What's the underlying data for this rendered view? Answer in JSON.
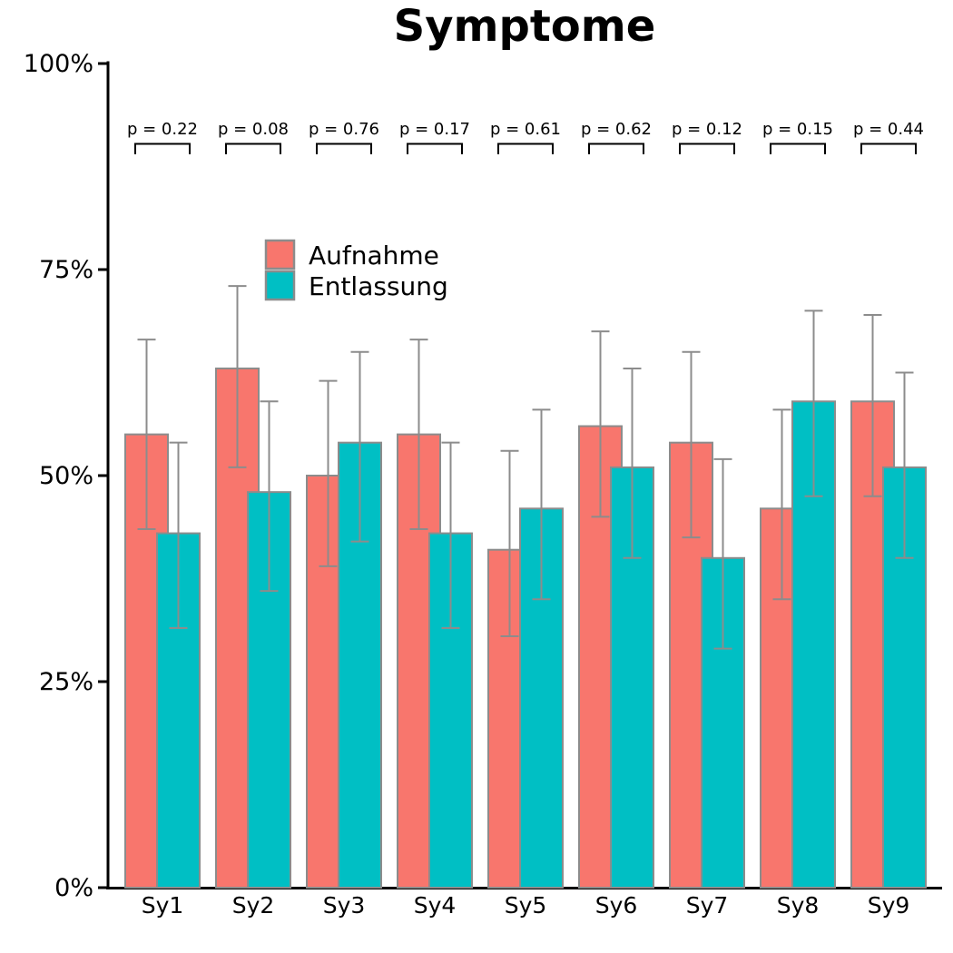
{
  "chart_data": {
    "type": "bar",
    "title": "Symptome",
    "categories": [
      "Sy1",
      "Sy2",
      "Sy3",
      "Sy4",
      "Sy5",
      "Sy6",
      "Sy7",
      "Sy8",
      "Sy9"
    ],
    "series": [
      {
        "name": "Aufnahme",
        "color": "#F8766D",
        "values": [
          55,
          63,
          50,
          55,
          41,
          56,
          54,
          46,
          59
        ],
        "error_low": [
          43.5,
          51,
          39,
          43.5,
          30.5,
          45,
          42.5,
          35,
          47.5
        ],
        "error_high": [
          66.5,
          73,
          61.5,
          66.5,
          53,
          67.5,
          65,
          58,
          69.5
        ]
      },
      {
        "name": "Entlassung",
        "color": "#00BFC4",
        "values": [
          43,
          48,
          54,
          43,
          46,
          51,
          40,
          59,
          51
        ],
        "error_low": [
          31.5,
          36,
          42,
          31.5,
          35,
          40,
          29,
          47.5,
          40
        ],
        "error_high": [
          54,
          59,
          65,
          54,
          58,
          63,
          52,
          70,
          62.5
        ]
      }
    ],
    "p_values": [
      "p = 0.22",
      "p = 0.08",
      "p = 0.76",
      "p = 0.17",
      "p = 0.61",
      "p = 0.62",
      "p = 0.12",
      "p = 0.15",
      "p = 0.44"
    ],
    "y_axis": {
      "min": 0,
      "max": 100,
      "ticks": [
        0,
        25,
        50,
        75,
        100
      ],
      "tick_labels": [
        "0%",
        "25%",
        "50%",
        "75%",
        "100%"
      ]
    },
    "legend_position": "upper-left-inside",
    "grid": false,
    "styles": {
      "bar_border_color": "#8C8C8C",
      "error_bar_color": "#8C8C8C",
      "axis_color": "#000000",
      "bracket_color": "#000000",
      "background_color": "#FFFFFF"
    }
  }
}
